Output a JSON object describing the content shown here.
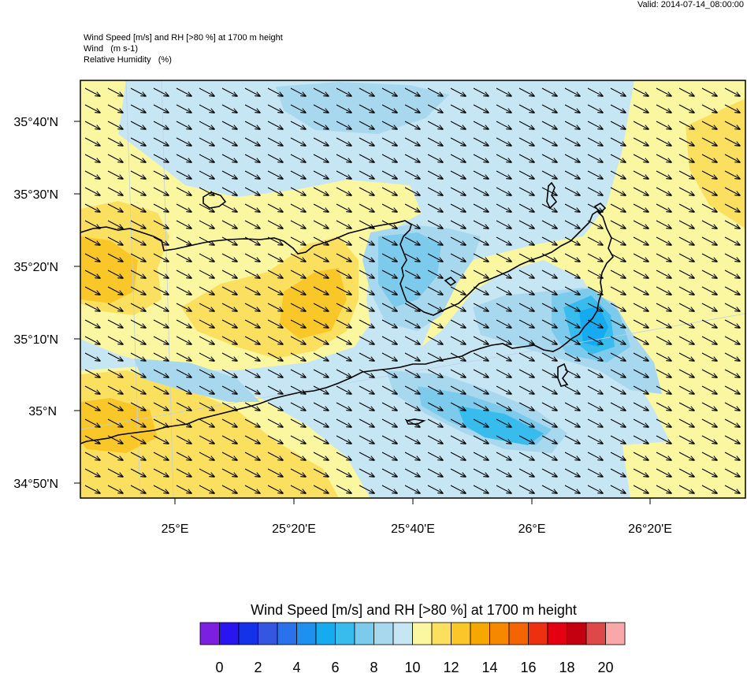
{
  "header": {
    "valid": "Valid: 2014-07-14_08:00:00",
    "line1": "Wind Speed [m/s] and RH [>80 %] at 1700 m height",
    "line2": "Wind   (m s-1)",
    "line3": "Relative Humidity   (%)"
  },
  "axes": {
    "lat_labels": [
      "35°40'N",
      "35°30'N",
      "35°20'N",
      "35°10'N",
      "35°N",
      "34°50'N"
    ],
    "lon_labels": [
      "25°E",
      "25°20'E",
      "25°40'E",
      "26°E",
      "26°20'E"
    ]
  },
  "colorbar": {
    "title": "Wind Speed [m/s] and RH [>80 %] at 1700 m height",
    "tick_labels": [
      "0",
      "2",
      "4",
      "6",
      "8",
      "10",
      "12",
      "14",
      "16",
      "18",
      "20"
    ],
    "colors": [
      "#7b1fe0",
      "#2a14f0",
      "#1432e8",
      "#3556e0",
      "#2a72ec",
      "#1e90f0",
      "#16aaf0",
      "#38bcee",
      "#7ccaec",
      "#a8d8ee",
      "#c6e6f4",
      "#fbf6a0",
      "#fbe060",
      "#f9c828",
      "#f6a800",
      "#f68800",
      "#f46400",
      "#ef3010",
      "#e40010",
      "#c40010",
      "#de4848",
      "#f8a8a8"
    ]
  },
  "map": {
    "region": "Crete",
    "wind_direction": "northwest"
  }
}
